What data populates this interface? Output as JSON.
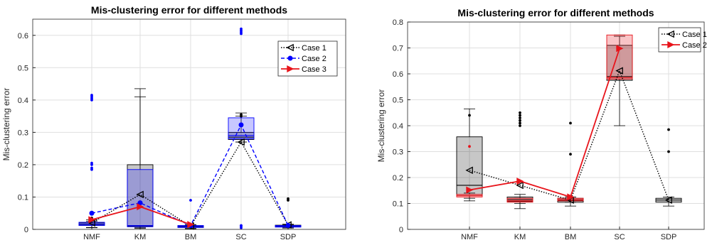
{
  "chart_data": [
    {
      "type": "box",
      "title": "Mis-clustering error for different methods",
      "xlabel": "",
      "ylabel": "Mis-clustering error",
      "ylim": [
        0,
        0.65
      ],
      "yticks": [
        "0",
        "0.1",
        "0.2",
        "0.3",
        "0.4",
        "0.5",
        "0.6"
      ],
      "categories": [
        "NMF",
        "KM",
        "BM",
        "SC",
        "SDP"
      ],
      "grid": true,
      "legend": "top-right",
      "series": [
        {
          "name": "Case 1",
          "color": "#000000",
          "line": "dotted",
          "marker": "triangle-left",
          "means": [
            0.02,
            0.108,
            0.01,
            0.27,
            0.014
          ],
          "boxes": [
            {
              "q1": 0.012,
              "median": 0.015,
              "q3": 0.02,
              "lo": 0.006,
              "hi": 0.025,
              "outliers": [
                0.03,
                0.035
              ]
            },
            {
              "q1": 0.01,
              "median": 0.012,
              "q3": 0.2,
              "lo": 0.005,
              "hi": 0.435,
              "outliers": []
            },
            {
              "q1": 0.006,
              "median": 0.008,
              "q3": 0.011,
              "lo": 0.003,
              "hi": 0.013,
              "outliers": []
            },
            {
              "q1": 0.278,
              "median": 0.285,
              "q3": 0.3,
              "lo": 0.27,
              "hi": 0.36,
              "outliers": [
                0.35,
                0.355
              ]
            },
            {
              "q1": 0.008,
              "median": 0.01,
              "q3": 0.013,
              "lo": 0.005,
              "hi": 0.016,
              "outliers": [
                0.09,
                0.095
              ]
            }
          ]
        },
        {
          "name": "Case 2",
          "color": "#0000ff",
          "line": "dashed",
          "marker": "circle",
          "means": [
            0.05,
            0.082,
            0.012,
            0.323,
            0.012
          ],
          "boxes": [
            {
              "q1": 0.012,
              "median": 0.016,
              "q3": 0.022,
              "lo": 0.005,
              "hi": 0.03,
              "outliers": [
                0.185,
                0.19,
                0.2,
                0.205,
                0.4,
                0.405,
                0.41,
                0.415
              ]
            },
            {
              "q1": 0.008,
              "median": 0.012,
              "q3": 0.185,
              "lo": 0.003,
              "hi": 0.41,
              "outliers": []
            },
            {
              "q1": 0.006,
              "median": 0.009,
              "q3": 0.012,
              "lo": 0.002,
              "hi": 0.015,
              "outliers": [
                0.09
              ]
            },
            {
              "q1": 0.28,
              "median": 0.29,
              "q3": 0.345,
              "lo": 0.27,
              "hi": 0.35,
              "outliers": [
                0.005,
                0.01,
                0.012,
                0.605,
                0.61,
                0.615,
                0.62
              ]
            },
            {
              "q1": 0.007,
              "median": 0.009,
              "q3": 0.012,
              "lo": 0.004,
              "hi": 0.015,
              "outliers": []
            }
          ]
        },
        {
          "name": "Case 3",
          "color": "#e8141b",
          "line": "solid",
          "marker": "triangle-right",
          "means": [
            0.03,
            0.07,
            0.015,
            null,
            null
          ],
          "boxes": []
        }
      ]
    },
    {
      "type": "box",
      "title": "Mis-clustering error for different methods",
      "xlabel": "",
      "ylabel": "Mis-clustering error",
      "ylim": [
        0,
        0.8
      ],
      "yticks": [
        "0",
        "0.1",
        "0.2",
        "0.3",
        "0.4",
        "0.5",
        "0.6",
        "0.7",
        "0.8"
      ],
      "categories": [
        "NMF",
        "KM",
        "BM",
        "SC",
        "SDP"
      ],
      "grid": true,
      "legend": "top-right",
      "series": [
        {
          "name": "Case 1",
          "color": "#000000",
          "line": "dotted",
          "marker": "triangle-left",
          "means": [
            0.228,
            0.17,
            0.113,
            0.612,
            0.113
          ],
          "boxes": [
            {
              "q1": 0.13,
              "median": 0.17,
              "q3": 0.357,
              "lo": 0.11,
              "hi": 0.465,
              "outliers": [
                0.44
              ]
            },
            {
              "q1": 0.107,
              "median": 0.115,
              "q3": 0.125,
              "lo": 0.08,
              "hi": 0.135,
              "outliers": [
                0.4,
                0.41,
                0.42,
                0.43,
                0.44,
                0.45
              ]
            },
            {
              "q1": 0.105,
              "median": 0.112,
              "q3": 0.12,
              "lo": 0.09,
              "hi": 0.125,
              "outliers": [
                0.29,
                0.41
              ]
            },
            {
              "q1": 0.575,
              "median": 0.59,
              "q3": 0.71,
              "lo": 0.4,
              "hi": 0.745,
              "outliers": []
            },
            {
              "q1": 0.105,
              "median": 0.113,
              "q3": 0.12,
              "lo": 0.09,
              "hi": 0.125,
              "outliers": [
                0.3,
                0.385
              ]
            }
          ]
        },
        {
          "name": "Case 2",
          "color": "#e8141b",
          "line": "solid",
          "marker": "triangle-right",
          "means": [
            0.152,
            0.186,
            0.125,
            0.698,
            null
          ],
          "boxes": [
            {
              "q1": 0.125,
              "median": 0.13,
              "q3": 0.135,
              "lo": 0.12,
              "hi": 0.14,
              "outliers": [
                0.32
              ]
            },
            {
              "q1": 0.105,
              "median": 0.11,
              "q3": 0.12,
              "lo": 0.1,
              "hi": 0.125,
              "outliers": []
            },
            {
              "q1": 0.11,
              "median": 0.115,
              "q3": 0.12,
              "lo": 0.105,
              "hi": 0.125,
              "outliers": []
            },
            {
              "q1": 0.58,
              "median": 0.585,
              "q3": 0.75,
              "lo": 0.575,
              "hi": 0.75,
              "outliers": []
            }
          ]
        }
      ]
    }
  ]
}
